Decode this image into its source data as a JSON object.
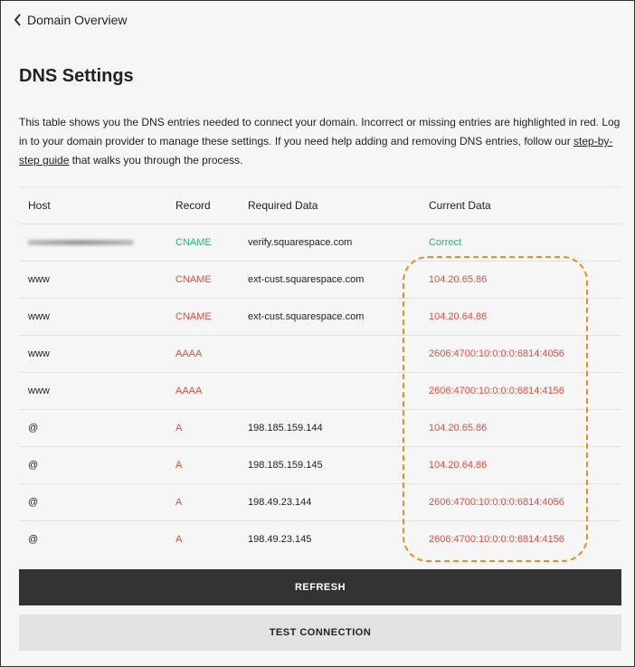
{
  "nav": {
    "back_label": "Domain Overview"
  },
  "page": {
    "title": "DNS Settings",
    "description_before_link": "This table shows you the DNS entries needed to connect your domain. Incorrect or missing entries are highlighted in red. Log in to your domain provider to manage these settings. If you need help adding and removing DNS entries, follow our ",
    "link_text": "step-by-step guide",
    "description_after_link": " that walks you through the process."
  },
  "table": {
    "headers": [
      "Host",
      "Record",
      "Required Data",
      "Current Data"
    ],
    "rows": [
      {
        "host": "",
        "record": "CNAME",
        "required": "verify.squarespace.com",
        "current": "Correct",
        "status": "ok"
      },
      {
        "host": "www",
        "record": "CNAME",
        "required": "ext-cust.squarespace.com",
        "current": "104.20.65.86",
        "status": "error"
      },
      {
        "host": "www",
        "record": "CNAME",
        "required": "ext-cust.squarespace.com",
        "current": "104.20.64.86",
        "status": "error"
      },
      {
        "host": "www",
        "record": "AAAA",
        "required": "",
        "current": "2606:4700:10:0:0:0:6814:4056",
        "status": "error"
      },
      {
        "host": "www",
        "record": "AAAA",
        "required": "",
        "current": "2606:4700:10:0:0:0:6814:4156",
        "status": "error"
      },
      {
        "host": "@",
        "record": "A",
        "required": "198.185.159.144",
        "current": "104.20.65.86",
        "status": "error"
      },
      {
        "host": "@",
        "record": "A",
        "required": "198.185.159.145",
        "current": "104.20.64.86",
        "status": "error"
      },
      {
        "host": "@",
        "record": "A",
        "required": "198.49.23.144",
        "current": "2606:4700:10:0:0:0:6814:4056",
        "status": "error"
      },
      {
        "host": "@",
        "record": "A",
        "required": "198.49.23.145",
        "current": "2606:4700:10:0:0:0:6814:4156",
        "status": "error"
      }
    ]
  },
  "buttons": {
    "refresh": "REFRESH",
    "test": "TEST CONNECTION"
  },
  "colors": {
    "error": "#e24c3c",
    "ok": "#27b87a",
    "highlight": "#f08a1c"
  }
}
